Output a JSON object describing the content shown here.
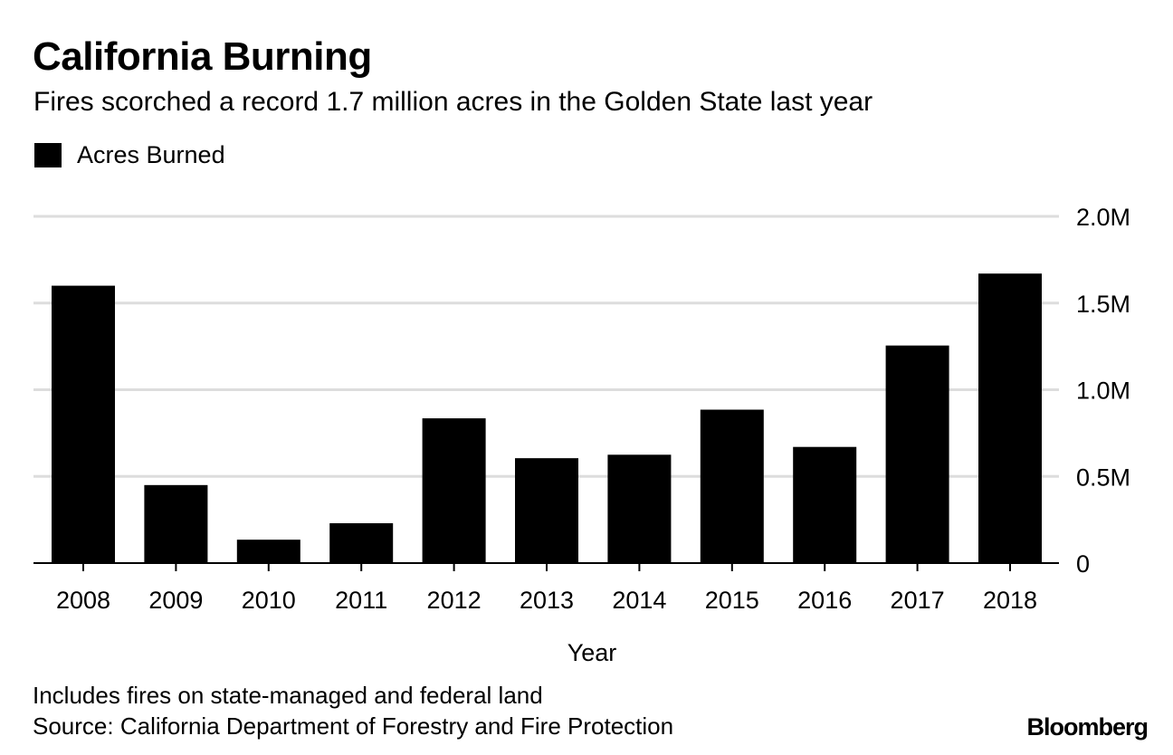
{
  "chart_data": {
    "type": "bar",
    "title": "California Burning",
    "subtitle": "Fires scorched a record 1.7 million acres in the Golden State last year",
    "categories": [
      "2008",
      "2009",
      "2010",
      "2011",
      "2012",
      "2013",
      "2014",
      "2015",
      "2016",
      "2017",
      "2018"
    ],
    "series": [
      {
        "name": "Acres Burned",
        "values": [
          1600000,
          450000,
          135000,
          230000,
          835000,
          605000,
          625000,
          885000,
          670000,
          1255000,
          1670000
        ]
      }
    ],
    "xlabel": "Year",
    "ylabel": "",
    "ylim": [
      0,
      2000000
    ],
    "yticks": [
      0,
      500000,
      1000000,
      1500000,
      2000000
    ],
    "ytick_labels": [
      "0",
      "0.5M",
      "1.0M",
      "1.5M",
      "2.0M"
    ],
    "y_axis_side": "right",
    "grid": true,
    "legend_position": "top-left",
    "colors": {
      "bar": "#000000",
      "grid": "#dddddd",
      "baseline": "#000000",
      "text": "#000000"
    }
  },
  "footer": {
    "note": "Includes fires on state-managed and federal land",
    "source": "Source: California Department of Forestry and Fire Protection",
    "brand": "Bloomberg"
  }
}
